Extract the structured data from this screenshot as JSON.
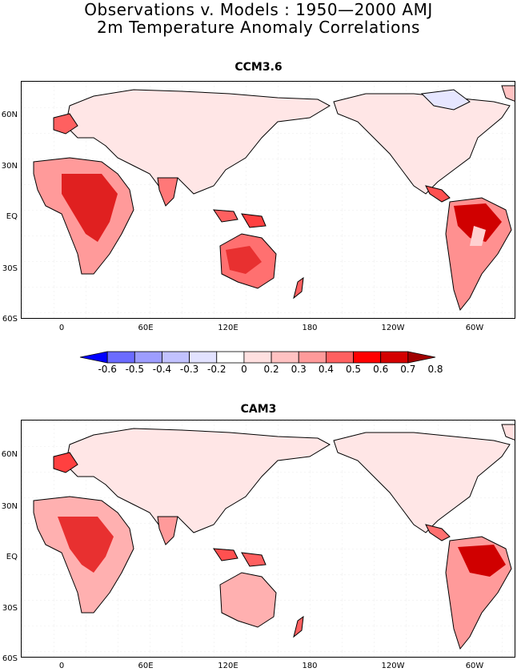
{
  "title_line1": "Observations v. Models : 1950—2000 AMJ",
  "title_line2": "2m Temperature Anomaly Correlations",
  "panels": [
    {
      "title": "CCM3.6"
    },
    {
      "title": "CAM3"
    }
  ],
  "lat_labels": [
    "60N",
    "30N",
    "EQ",
    "30S",
    "60S"
  ],
  "lon_labels": [
    "0",
    "60E",
    "120E",
    "180",
    "120W",
    "60W"
  ],
  "colorbar": {
    "labels": [
      "-0.6",
      "-0.5",
      "-0.4",
      "-0.3",
      "-0.2",
      "0",
      "0.2",
      "0.3",
      "0.4",
      "0.5",
      "0.6",
      "0.7",
      "0.8"
    ],
    "colors": [
      "#0000ff",
      "#6b6bff",
      "#9d9dff",
      "#c2c2ff",
      "#e2e2ff",
      "#ffffff",
      "#ffe0e0",
      "#ffc2c2",
      "#ff9a9a",
      "#ff6060",
      "#ff0000",
      "#d40000",
      "#a00000"
    ]
  }
}
